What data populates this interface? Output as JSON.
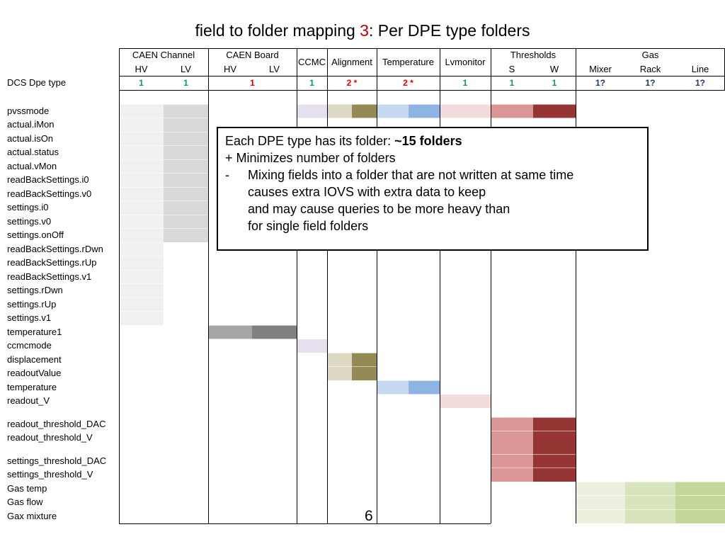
{
  "title": {
    "prefix": "field to folder mapping ",
    "number": "3",
    "suffix": ": Per DPE type folders"
  },
  "header": {
    "caen_channel": "CAEN Channel",
    "caen_board": "CAEN Board",
    "ccmc": "CCMC",
    "alignment": "Alignment",
    "temperature": "Temperature",
    "lvmonitor": "Lvmonitor",
    "thresholds": "Thresholds",
    "gas": "Gas",
    "hv": "HV",
    "lv": "LV",
    "s": "S",
    "w": "W",
    "mixer": "Mixer",
    "rack": "Rack",
    "line": "Line"
  },
  "dpe_row": {
    "label": "DCS Dpe type",
    "values": [
      "1",
      "1",
      "1",
      "1",
      "2 *",
      "2 *",
      "1",
      "1",
      "1",
      "1?",
      "1?",
      "1?"
    ]
  },
  "colors": {
    "green": "#00a050",
    "red": "#e00000",
    "blue": "#1f3864"
  },
  "fields": [
    "pvssmode",
    "actual.iMon",
    "actual.isOn",
    "actual.status",
    "actual.vMon",
    "readBackSettings.i0",
    "readBackSettings.v0",
    "settings.i0",
    "settings.v0",
    "settings.onOff",
    "readBackSettings.rDwn",
    "readBackSettings.rUp",
    "readBackSettings.v1",
    "settings.rDwn",
    "settings.rUp",
    "settings.v1",
    "temperature1",
    "ccmcmode",
    "displacement",
    "readoutValue",
    "temperature",
    "readout_V",
    "readout_threshold_DAC",
    "readout_threshold_V",
    "settings_threshold_DAC",
    "settings_threshold_V",
    "Gas temp",
    "Gas flow",
    "Gax mixture"
  ],
  "callout": {
    "line1_prefix": "Each DPE type has its folder: ",
    "line1_bold": "~15 folders",
    "line2": "+ Minimizes number of folders",
    "line3_dash": "-",
    "line3": "Mixing fields into a folder that are not written at same time",
    "line4": "causes extra IOVS with extra data to keep",
    "line5": "and may cause queries to be more heavy than",
    "line6": "for single field folders"
  },
  "page_number": "6"
}
